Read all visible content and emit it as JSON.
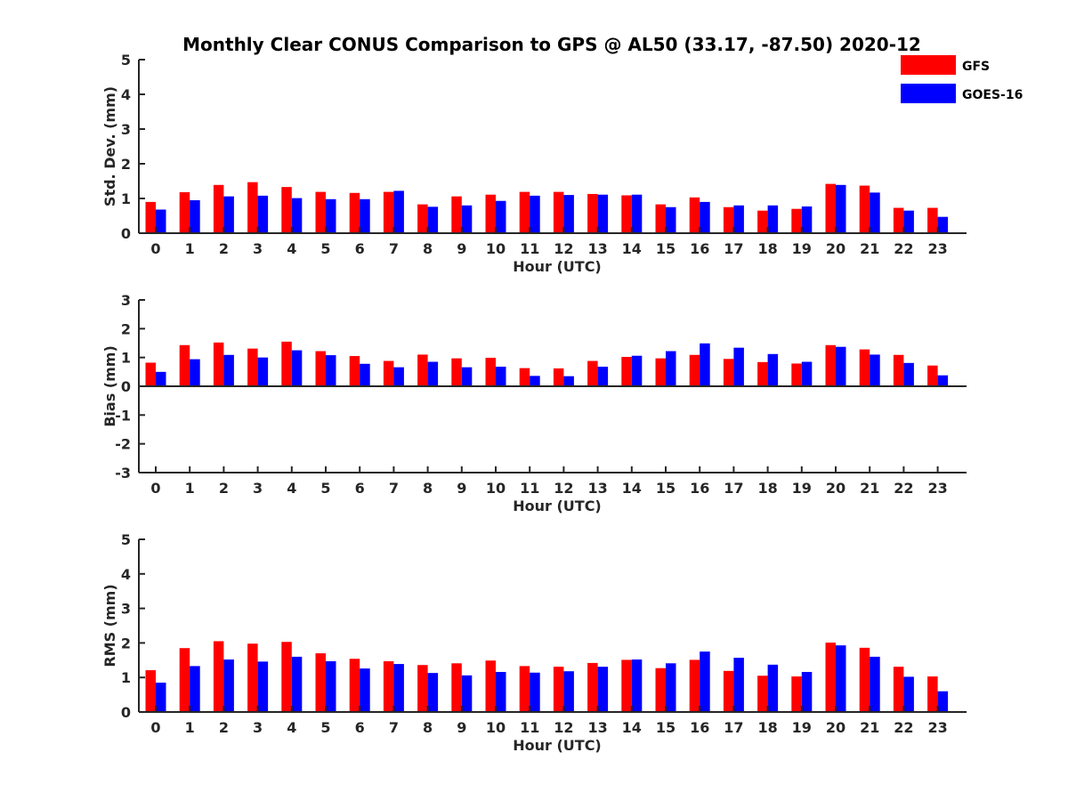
{
  "chart_data": [
    {
      "type": "bar",
      "title": "Monthly Clear CONUS Comparison to GPS @ AL50 (33.17, -87.50) 2020-12",
      "xlabel": "Hour (UTC)",
      "ylabel": "Std. Dev. (mm)",
      "ylim": [
        0,
        5
      ],
      "yticks": [
        0,
        1,
        2,
        3,
        4,
        5
      ],
      "categories": [
        "0",
        "1",
        "2",
        "3",
        "4",
        "5",
        "6",
        "7",
        "8",
        "9",
        "10",
        "11",
        "12",
        "13",
        "14",
        "15",
        "16",
        "17",
        "18",
        "19",
        "20",
        "21",
        "22",
        "23"
      ],
      "series": [
        {
          "name": "GFS",
          "color": "#ff0000",
          "values": [
            0.9,
            1.18,
            1.39,
            1.47,
            1.33,
            1.19,
            1.16,
            1.19,
            0.83,
            1.06,
            1.11,
            1.19,
            1.19,
            1.13,
            1.09,
            0.83,
            1.03,
            0.75,
            0.65,
            0.7,
            1.42,
            1.37,
            0.73,
            0.73
          ]
        },
        {
          "name": "GOES-16",
          "color": "#0000ff",
          "values": [
            0.68,
            0.95,
            1.06,
            1.08,
            1.01,
            0.98,
            0.98,
            1.22,
            0.76,
            0.8,
            0.93,
            1.08,
            1.1,
            1.11,
            1.11,
            0.75,
            0.9,
            0.8,
            0.8,
            0.77,
            1.39,
            1.17,
            0.65,
            0.47
          ]
        }
      ],
      "legend": "top-right",
      "grid": false
    },
    {
      "type": "bar",
      "xlabel": "Hour (UTC)",
      "ylabel": "Bias (mm)",
      "ylim": [
        -3,
        3
      ],
      "yticks": [
        -3,
        -2,
        -1,
        0,
        1,
        2,
        3
      ],
      "categories": [
        "0",
        "1",
        "2",
        "3",
        "4",
        "5",
        "6",
        "7",
        "8",
        "9",
        "10",
        "11",
        "12",
        "13",
        "14",
        "15",
        "16",
        "17",
        "18",
        "19",
        "20",
        "21",
        "22",
        "23"
      ],
      "series": [
        {
          "name": "GFS",
          "color": "#ff0000",
          "values": [
            0.82,
            1.43,
            1.52,
            1.31,
            1.55,
            1.22,
            1.05,
            0.88,
            1.1,
            0.97,
            0.99,
            0.63,
            0.62,
            0.88,
            1.02,
            0.97,
            1.09,
            0.95,
            0.84,
            0.79,
            1.43,
            1.28,
            1.09,
            0.72
          ]
        },
        {
          "name": "GOES-16",
          "color": "#0000ff",
          "values": [
            0.5,
            0.94,
            1.09,
            1.0,
            1.25,
            1.08,
            0.78,
            0.66,
            0.85,
            0.66,
            0.68,
            0.36,
            0.35,
            0.68,
            1.06,
            1.22,
            1.49,
            1.34,
            1.12,
            0.85,
            1.37,
            1.1,
            0.81,
            0.38
          ]
        }
      ],
      "grid": false
    },
    {
      "type": "bar",
      "xlabel": "Hour (UTC)",
      "ylabel": "RMS (mm)",
      "ylim": [
        0,
        5
      ],
      "yticks": [
        0,
        1,
        2,
        3,
        4,
        5
      ],
      "categories": [
        "0",
        "1",
        "2",
        "3",
        "4",
        "5",
        "6",
        "7",
        "8",
        "9",
        "10",
        "11",
        "12",
        "13",
        "14",
        "15",
        "16",
        "17",
        "18",
        "19",
        "20",
        "21",
        "22",
        "23"
      ],
      "series": [
        {
          "name": "GFS",
          "color": "#ff0000",
          "values": [
            1.21,
            1.85,
            2.05,
            1.98,
            2.03,
            1.7,
            1.54,
            1.47,
            1.36,
            1.41,
            1.49,
            1.33,
            1.31,
            1.42,
            1.51,
            1.27,
            1.51,
            1.19,
            1.05,
            1.03,
            2.01,
            1.86,
            1.31,
            1.03
          ]
        },
        {
          "name": "GOES-16",
          "color": "#0000ff",
          "values": [
            0.85,
            1.33,
            1.52,
            1.46,
            1.6,
            1.47,
            1.26,
            1.39,
            1.13,
            1.06,
            1.16,
            1.14,
            1.18,
            1.31,
            1.52,
            1.41,
            1.75,
            1.57,
            1.37,
            1.16,
            1.93,
            1.6,
            1.02,
            0.6
          ]
        }
      ],
      "grid": false
    }
  ]
}
